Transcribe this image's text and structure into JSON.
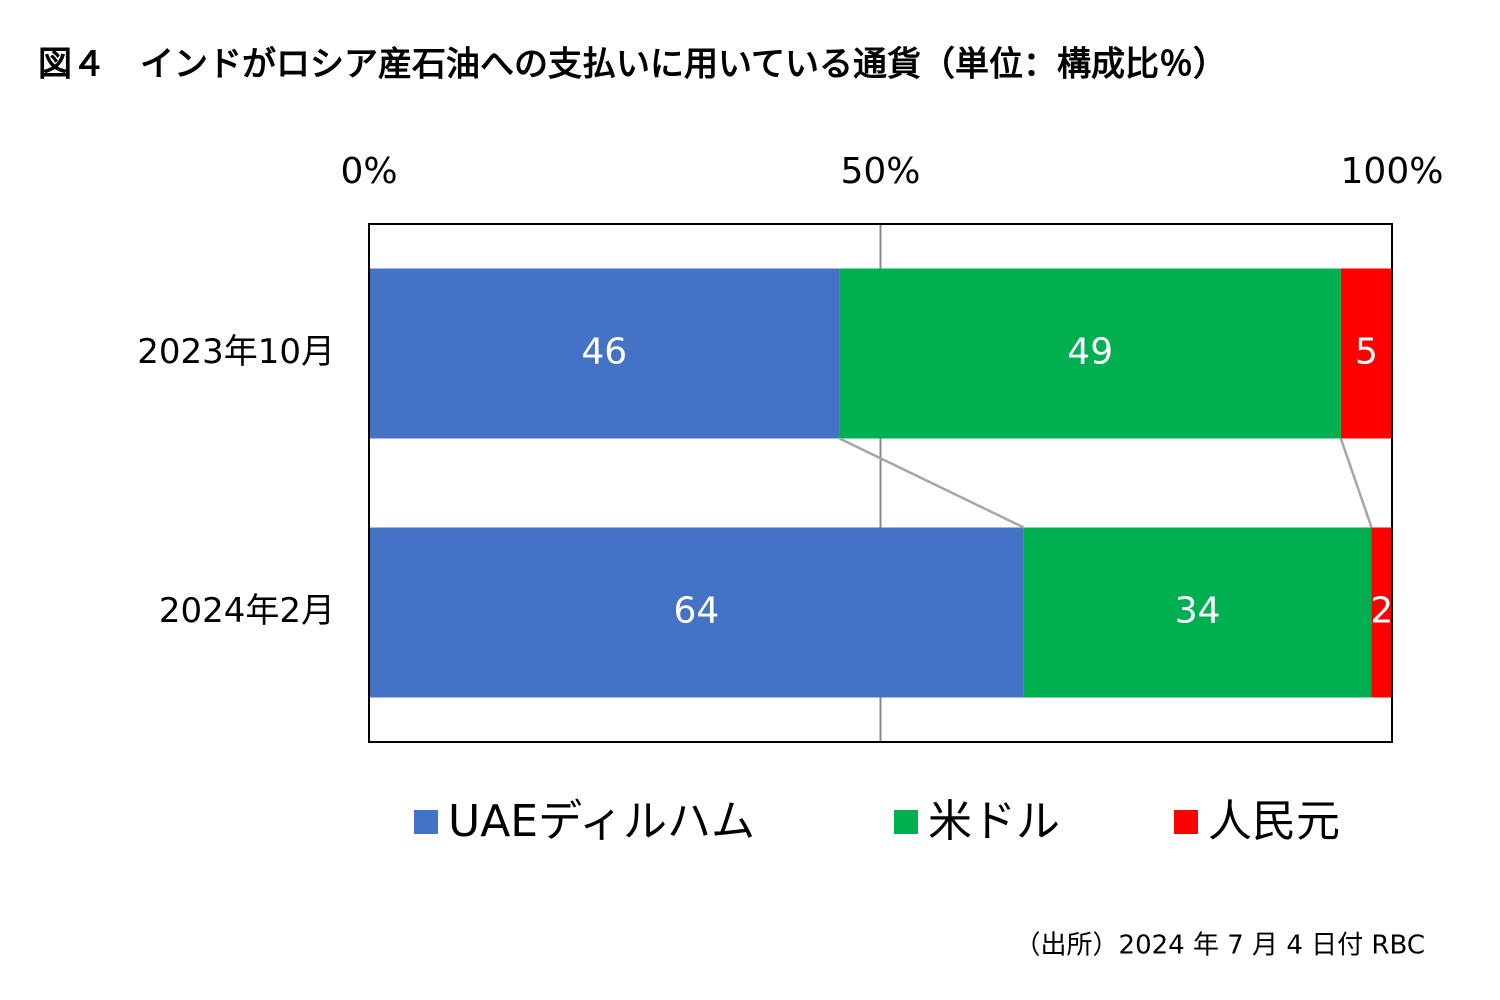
{
  "chart_data": {
    "type": "bar",
    "stacked": true,
    "horizontal": true,
    "title": "図４　インドがロシア産石油への支払いに用いている通貨（単位：構成比％）",
    "source": "（出所）2024 年 7 月 4 日付 RBC",
    "categories": [
      "2023年10月",
      "2024年2月"
    ],
    "series": [
      {
        "name": "UAEディルハム",
        "color": "#4472c4",
        "values": [
          46,
          64
        ]
      },
      {
        "name": "米ドル",
        "color": "#00b050",
        "values": [
          49,
          34
        ]
      },
      {
        "name": "人民元",
        "color": "#ff0000",
        "values": [
          5,
          2
        ]
      }
    ],
    "xlim": [
      0,
      100
    ],
    "xticks": [
      {
        "value": 0,
        "label": "0%"
      },
      {
        "value": 50,
        "label": "50%"
      },
      {
        "value": 100,
        "label": "100%"
      }
    ],
    "grid": true,
    "series_lines": true,
    "legend": "bottom"
  }
}
